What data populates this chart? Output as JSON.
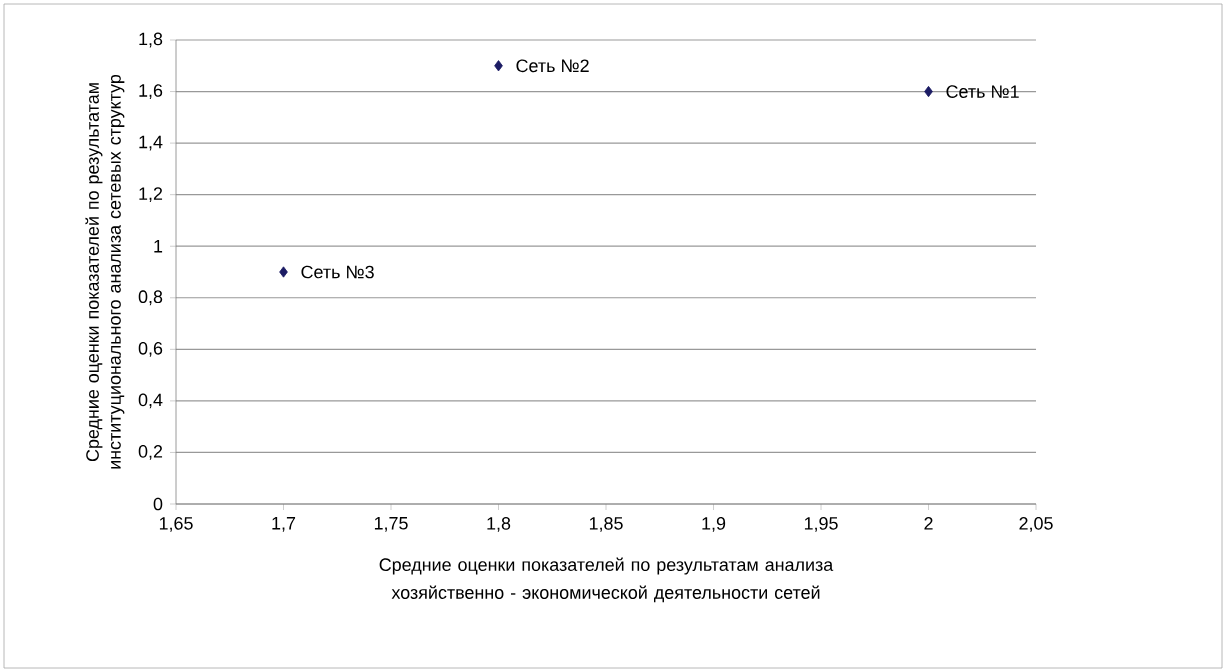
{
  "chart_data": {
    "type": "scatter",
    "xlabel": "Средние оценки показателей по результатам анализа хозяйственно - экономической деятельности сетей",
    "ylabel": "Средние оценки показателей по результатам институционального анализа сетевых структур",
    "series": [
      {
        "color": "#1c1c64",
        "x": [
          2.0,
          1.8,
          1.7
        ],
        "values": [
          1.6,
          1.7,
          0.9
        ]
      }
    ],
    "annotations": [
      {
        "text": "Сеть №1",
        "x": 2.0,
        "y": 1.6
      },
      {
        "text": "Сеть №2",
        "x": 1.8,
        "y": 1.7
      },
      {
        "text": "Сеть №3",
        "x": 1.7,
        "y": 0.9
      }
    ],
    "xlim": [
      1.65,
      2.05
    ],
    "xticks": [
      {
        "value": 1.65,
        "label": "1,65"
      },
      {
        "value": 1.7,
        "label": "1,7"
      },
      {
        "value": 1.75,
        "label": "1,75"
      },
      {
        "value": 1.8,
        "label": "1,8"
      },
      {
        "value": 1.85,
        "label": "1,85"
      },
      {
        "value": 1.9,
        "label": "1,9"
      },
      {
        "value": 1.95,
        "label": "1,95"
      },
      {
        "value": 2.0,
        "label": "2"
      },
      {
        "value": 2.05,
        "label": "2,05"
      }
    ],
    "ylim": [
      0,
      1.8
    ],
    "yticks": [
      0,
      {
        "value": 0.2,
        "label": "0,2"
      },
      {
        "value": 0.4,
        "label": "0,4"
      },
      {
        "value": 0.6,
        "label": "0,6"
      },
      {
        "value": 0.8,
        "label": "0,8"
      },
      1,
      {
        "value": 1.2,
        "label": "1,2"
      },
      {
        "value": 1.4,
        "label": "1,4"
      },
      {
        "value": 1.6,
        "label": "1,6"
      },
      {
        "value": 1.8,
        "label": "1,8"
      }
    ],
    "grid": "y",
    "marker": "diamond"
  }
}
